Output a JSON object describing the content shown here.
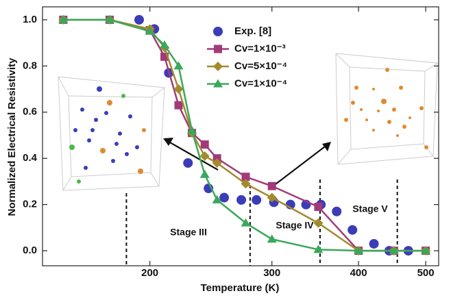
{
  "chart_data": {
    "type": "line",
    "xlabel": "Temperature (K)",
    "ylabel": "Normalized Electrical Resistivity",
    "xlim": [
      140,
      522
    ],
    "xscale": "log",
    "xticks": [
      200,
      300,
      400,
      500
    ],
    "ylim": [
      -0.065,
      1.056
    ],
    "yticks": [
      {
        "value": 0,
        "label": "0.0"
      },
      0.2,
      0.4,
      0.6,
      0.8,
      {
        "value": 1,
        "label": "1.0"
      }
    ],
    "series": [
      {
        "name": "Exp. [8]",
        "color": "#3b3db8",
        "marker": "circle",
        "line": false,
        "x": [
          193,
          203,
          213,
          227,
          243,
          256,
          271,
          285,
          302,
          319,
          336,
          353,
          372,
          392,
          421,
          443,
          472
        ],
        "values": [
          1.0,
          0.96,
          0.77,
          0.38,
          0.27,
          0.23,
          0.22,
          0.22,
          0.21,
          0.2,
          0.2,
          0.2,
          0.17,
          0.09,
          0.03,
          0.0,
          0.0
        ]
      },
      {
        "name": "Cv=1×10⁻³",
        "color": "#a13a78",
        "marker": "square",
        "line": true,
        "x": [
          150,
          175,
          200,
          210,
          220,
          230,
          240,
          250,
          275,
          300,
          350,
          400,
          450,
          500
        ],
        "values": [
          1.0,
          1.0,
          0.955,
          0.84,
          0.63,
          0.51,
          0.46,
          0.4,
          0.32,
          0.28,
          0.19,
          0.0,
          0.0,
          0.0
        ]
      },
      {
        "name": "Cv=5×10⁻⁴",
        "color": "#a38a2c",
        "marker": "diamond",
        "line": true,
        "x": [
          150,
          175,
          200,
          210,
          220,
          230,
          240,
          250,
          275,
          300,
          350,
          400,
          450,
          500
        ],
        "values": [
          1.0,
          1.0,
          0.96,
          0.88,
          0.7,
          0.51,
          0.41,
          0.38,
          0.29,
          0.23,
          0.12,
          0.0,
          0.0,
          0.0
        ]
      },
      {
        "name": "Cv=1×10⁻⁴",
        "color": "#3aa85a",
        "marker": "triangle",
        "line": true,
        "x": [
          150,
          175,
          200,
          210,
          220,
          230,
          240,
          250,
          275,
          300,
          350,
          400,
          450,
          500
        ],
        "values": [
          1.0,
          1.0,
          0.95,
          0.89,
          0.8,
          0.52,
          0.33,
          0.22,
          0.12,
          0.05,
          0.005,
          0.0,
          0.0,
          0.0
        ]
      }
    ],
    "stage_lines": [
      185,
      279,
      352,
      455
    ],
    "annotations": [
      "Stage III",
      "Stage IV",
      "Stage V"
    ]
  }
}
